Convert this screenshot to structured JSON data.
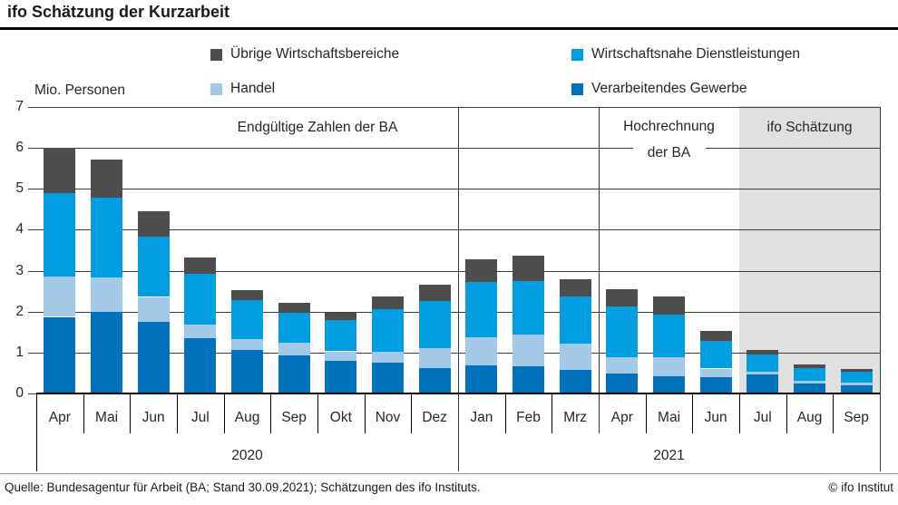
{
  "header": {
    "title": "ifo Schätzung der Kurzarbeit"
  },
  "legend": {
    "items": [
      {
        "label": "Übrige Wirtschaftsbereiche",
        "color": "#4d4d4d"
      },
      {
        "label": "Wirtschaftsnahe Dienstleistungen",
        "color": "#009ee0"
      },
      {
        "label": "Handel",
        "color": "#a3c9e8"
      },
      {
        "label": "Verarbeitendes Gewerbe",
        "color": "#0072bc"
      }
    ]
  },
  "chart_data": {
    "type": "bar",
    "stacked": true,
    "title": "ifo Schätzung der Kurzarbeit",
    "ylabel": "Mio. Personen",
    "ylim": [
      0,
      7
    ],
    "yticks": [
      0,
      1,
      2,
      3,
      4,
      5,
      6,
      7
    ],
    "categories": [
      "Apr",
      "Mai",
      "Jun",
      "Jul",
      "Aug",
      "Sep",
      "Okt",
      "Nov",
      "Dez",
      "Jan",
      "Feb",
      "Mrz",
      "Apr",
      "Mai",
      "Jun",
      "Jul",
      "Aug",
      "Sep"
    ],
    "years": [
      {
        "label": "2020",
        "from": 0,
        "to": 9
      },
      {
        "label": "2021",
        "from": 9,
        "to": 18
      }
    ],
    "sections": [
      {
        "label": "Endgültige Zahlen der BA",
        "label_lines": [
          "Endgültige Zahlen der BA"
        ],
        "from": 0,
        "to": 12,
        "shaded": false
      },
      {
        "label": "Hochrechnung der BA",
        "label_lines": [
          "Hochrechnung",
          "der BA"
        ],
        "from": 12,
        "to": 15,
        "shaded": false
      },
      {
        "label": "ifo Schätzung",
        "label_lines": [
          "ifo Schätzung"
        ],
        "from": 15,
        "to": 18,
        "shaded": true
      }
    ],
    "shaded_region_color": "#e0e0e0",
    "series": [
      {
        "name": "Verarbeitendes Gewerbe",
        "color": "#0072bc",
        "values": [
          1.87,
          2.0,
          1.76,
          1.36,
          1.06,
          0.93,
          0.8,
          0.76,
          0.63,
          0.69,
          0.67,
          0.57,
          0.48,
          0.43,
          0.4,
          0.46,
          0.25,
          0.2
        ]
      },
      {
        "name": "Handel",
        "color": "#a3c9e8",
        "values": [
          0.98,
          0.84,
          0.6,
          0.33,
          0.27,
          0.32,
          0.23,
          0.26,
          0.48,
          0.69,
          0.76,
          0.66,
          0.41,
          0.45,
          0.21,
          0.08,
          0.07,
          0.07
        ]
      },
      {
        "name": "Wirtschaftsnahe Dienstleistungen",
        "color": "#009ee0",
        "values": [
          2.05,
          1.95,
          1.48,
          1.24,
          0.95,
          0.73,
          0.77,
          1.05,
          1.14,
          1.34,
          1.31,
          1.14,
          1.24,
          1.04,
          0.67,
          0.42,
          0.31,
          0.27
        ]
      },
      {
        "name": "Übrige Wirtschaftsbereiche",
        "color": "#4d4d4d",
        "values": [
          1.1,
          0.93,
          0.61,
          0.39,
          0.24,
          0.24,
          0.18,
          0.31,
          0.41,
          0.56,
          0.62,
          0.43,
          0.41,
          0.45,
          0.25,
          0.11,
          0.07,
          0.07
        ]
      }
    ],
    "totals": [
      6.0,
      5.72,
      4.45,
      3.32,
      2.52,
      2.22,
      1.98,
      2.38,
      2.66,
      3.28,
      3.36,
      2.8,
      2.54,
      2.37,
      1.53,
      1.07,
      0.7,
      0.61
    ]
  },
  "footer": {
    "source": "Quelle: Bundesagentur für Arbeit (BA; Stand 30.09.2021); Schätzungen des ifo Instituts.",
    "copyright": "© ifo Institut"
  }
}
